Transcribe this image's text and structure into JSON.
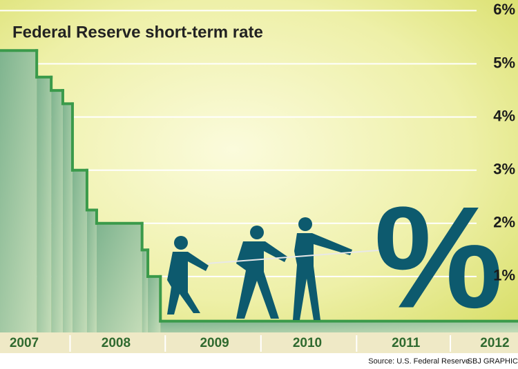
{
  "chart_data": {
    "type": "step-area",
    "title": "Federal Reserve short-term rate",
    "source": "Source: U.S. Federal Reserve",
    "credit": "SBJ GRAPHIC",
    "annotations": [
      "%"
    ],
    "x": [
      2007.3,
      2007.68,
      2007.83,
      2007.95,
      2008.05,
      2008.2,
      2008.3,
      2008.77,
      2008.83,
      2008.96
    ],
    "values": [
      5.25,
      4.75,
      4.5,
      4.25,
      3.0,
      2.25,
      2.0,
      1.5,
      1.0,
      0.16
    ],
    "color": "#3a9a4a",
    "xlim": [
      2007.3,
      2012.66
    ],
    "xticks": [
      {
        "value": 2007.55,
        "label": "2007"
      },
      {
        "value": 2008.5,
        "label": "2008"
      },
      {
        "value": 2009.52,
        "label": "2009"
      },
      {
        "value": 2010.48,
        "label": "2010"
      },
      {
        "value": 2011.5,
        "label": "2011"
      },
      {
        "value": 2012.42,
        "label": "2012"
      }
    ],
    "ylim": [
      0,
      6.2
    ],
    "yticks": [
      {
        "value": 1,
        "label": "1%"
      },
      {
        "value": 2,
        "label": "2%"
      },
      {
        "value": 3,
        "label": "3%"
      },
      {
        "value": 4,
        "label": "4%"
      },
      {
        "value": 5,
        "label": "5%"
      },
      {
        "value": 6,
        "label": "6%"
      }
    ],
    "grid": true
  }
}
